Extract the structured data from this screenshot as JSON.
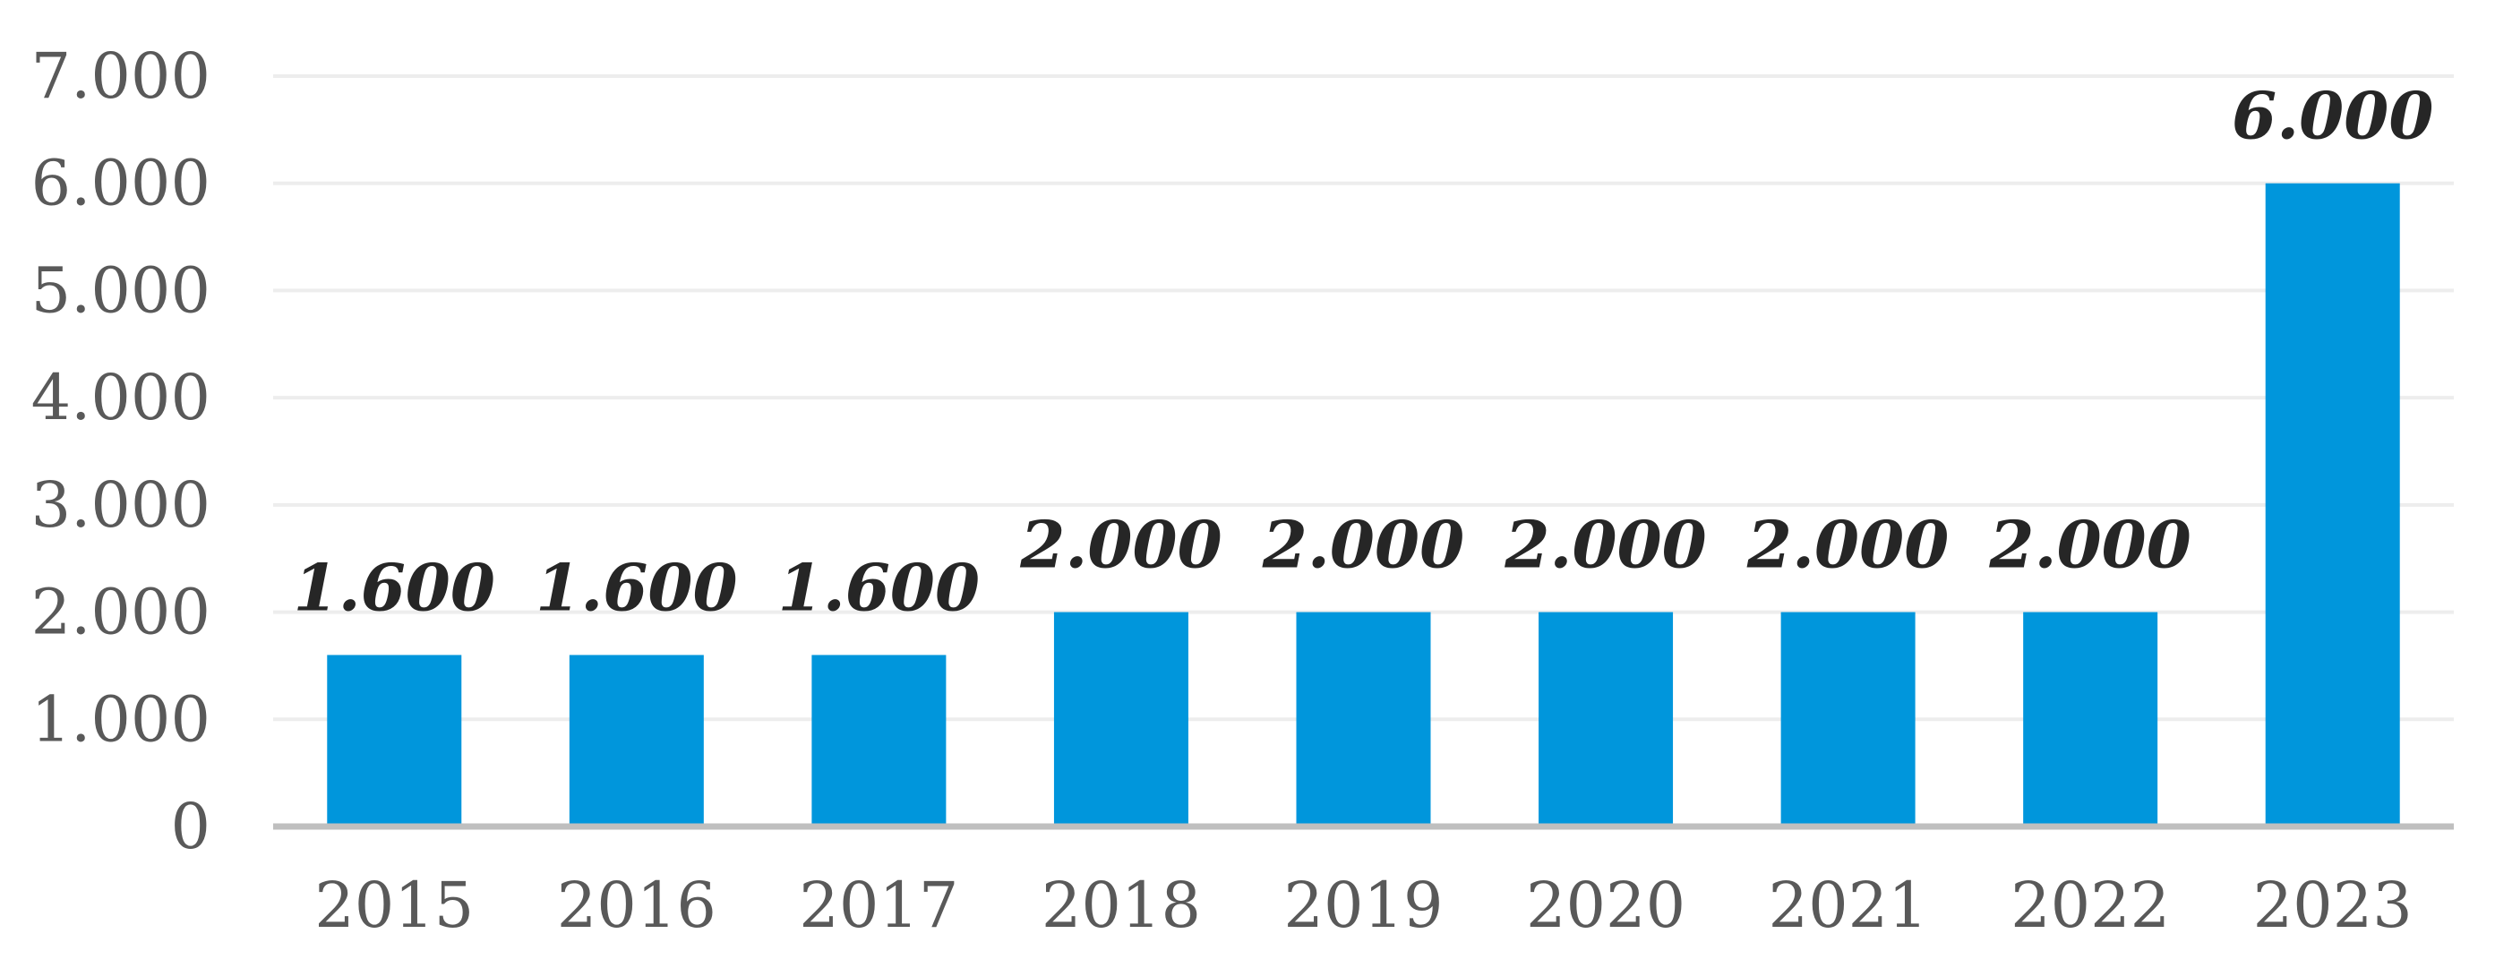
{
  "chart_data": {
    "type": "bar",
    "title": "",
    "xlabel": "",
    "ylabel": "",
    "categories": [
      "2015",
      "2016",
      "2017",
      "2018",
      "2019",
      "2020",
      "2021",
      "2022",
      "2023"
    ],
    "values": [
      1600,
      1600,
      1600,
      2000,
      2000,
      2000,
      2000,
      2000,
      6000
    ],
    "data_labels": [
      "1.600",
      "1.600",
      "1.600",
      "2.000",
      "2.000",
      "2.000",
      "2.000",
      "2.000",
      "6.000"
    ],
    "ylim": [
      0,
      7000
    ],
    "yticks": [
      0,
      1000,
      2000,
      3000,
      4000,
      5000,
      6000,
      7000
    ],
    "ytick_labels": [
      "0",
      "1.000",
      "2.000",
      "3.000",
      "4.000",
      "5.000",
      "6.000",
      "7.000"
    ],
    "grid": true,
    "legend": "none",
    "colors": {
      "bar": "#0096DC",
      "grid": "#EDEDED",
      "axis": "#BFBFBF",
      "tick_text": "#595959",
      "label_text": "#262626"
    }
  }
}
